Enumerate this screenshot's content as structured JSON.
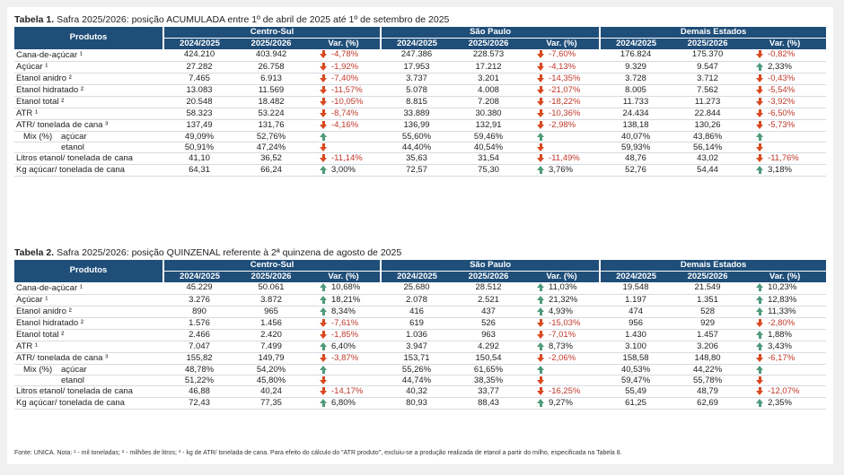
{
  "table1": {
    "caption_bold": "Tabela 1.",
    "caption_text": " Safra 2025/2026: posição ACUMULADA entre 1º de abril de 2025 até 1º de setembro de 2025"
  },
  "table2": {
    "caption_bold": "Tabela 2.",
    "caption_text": " Safra 2025/2026: posição QUINZENAL referente à 2ª quinzena de agosto de 2025"
  },
  "headers": {
    "produtos": "Produtos",
    "groups": [
      "Centro-Sul",
      "São Paulo",
      "Demais Estados"
    ],
    "cols": [
      "2024/2025",
      "2025/2026",
      "Var. (%)"
    ]
  },
  "footnote": "Fonte: UNICA. Nota: ¹ - mil toneladas; ² - milhões de litros; ³ - kg de ATR/ tonelada de cana. Para efeito do cálculo do \"ATR produto\", excluiu-se a produção realizada de etanol a partir do milho, especificada na Tabela 8.",
  "icons": {
    "up": "arrow-up-icon",
    "down": "arrow-down-icon"
  },
  "colors": {
    "header": "#1f4e79",
    "up": "#4e9a7a",
    "down": "#d9481f",
    "negative_text": "#c0392b"
  }
}
